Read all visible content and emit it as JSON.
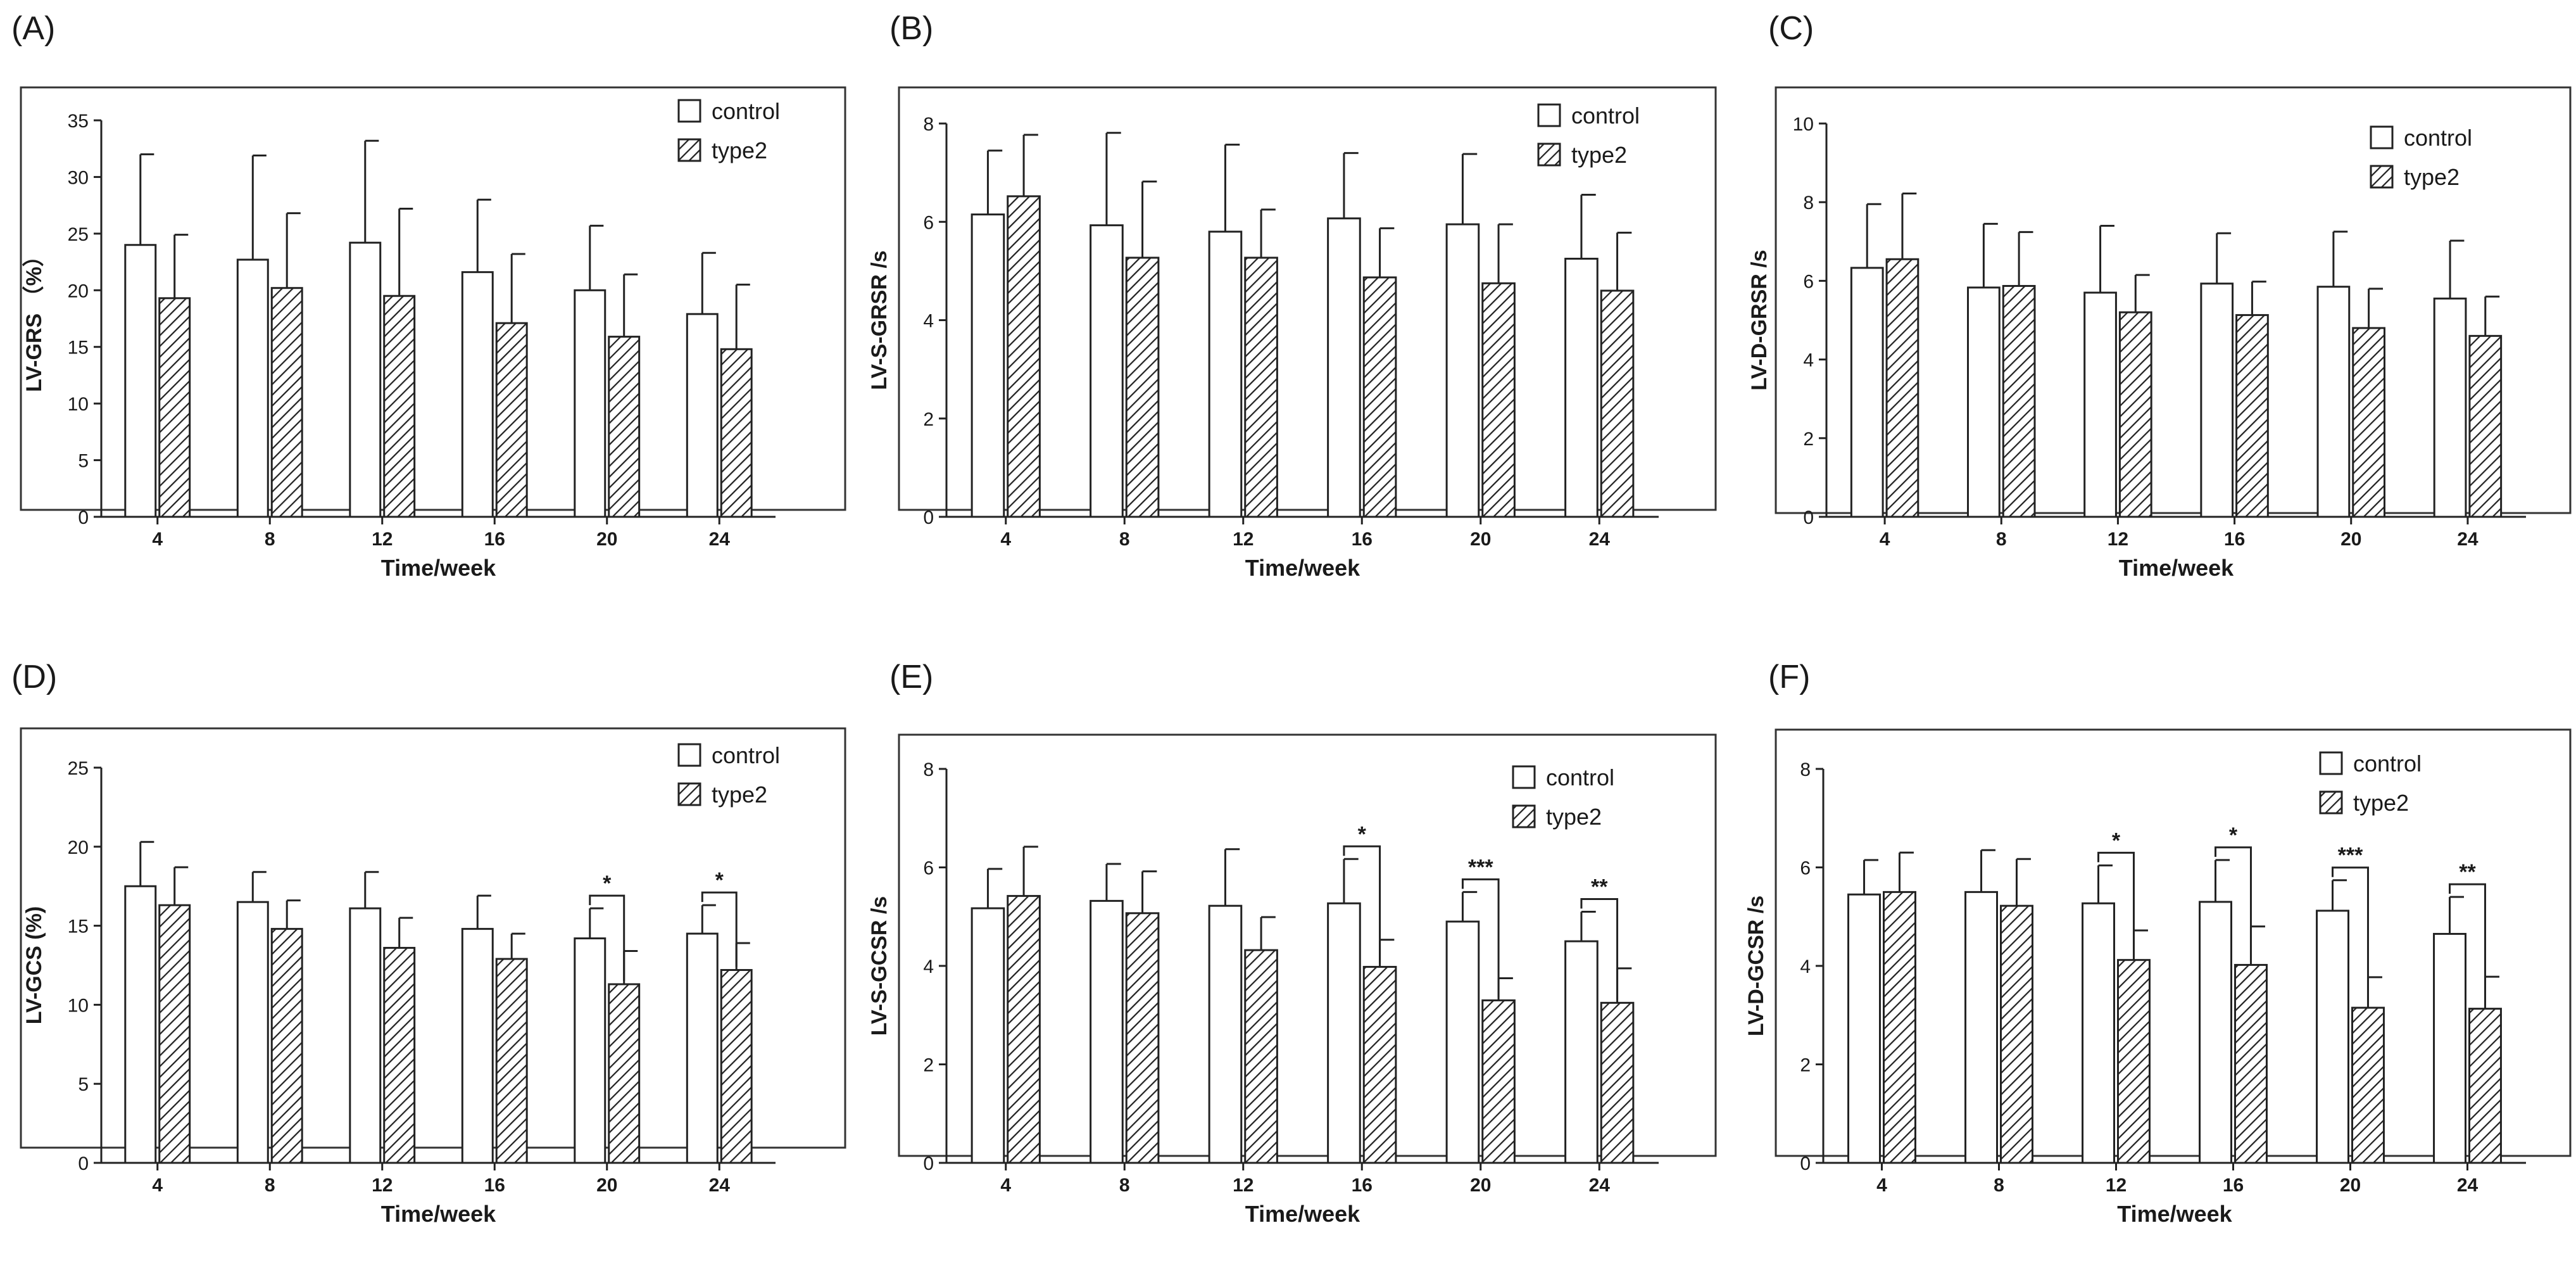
{
  "chart_data": [
    {
      "panel_label": "(A)",
      "type": "bar",
      "xlabel": "Time/week",
      "ylabel": "LV-GRS （%）",
      "categories": [
        "4",
        "8",
        "12",
        "16",
        "20",
        "24"
      ],
      "ylim": [
        0,
        35
      ],
      "yticks": [
        0,
        5,
        10,
        15,
        20,
        25,
        30,
        35
      ],
      "series": [
        {
          "name": "control",
          "values": [
            24.0,
            22.7,
            24.2,
            21.6,
            20.0,
            17.9
          ],
          "error": [
            8.0,
            9.2,
            9.0,
            6.4,
            5.7,
            5.4
          ]
        },
        {
          "name": "type2",
          "values": [
            19.3,
            20.2,
            19.5,
            17.1,
            15.9,
            14.8
          ],
          "error": [
            5.6,
            6.6,
            7.7,
            6.1,
            5.5,
            5.7
          ]
        }
      ],
      "significance": [],
      "legend_position": "top-right"
    },
    {
      "panel_label": "(B)",
      "type": "bar",
      "xlabel": "Time/week",
      "ylabel": "LV-S-GRSR /s",
      "categories": [
        "4",
        "8",
        "12",
        "16",
        "20",
        "24"
      ],
      "ylim": [
        0,
        8
      ],
      "yticks": [
        0,
        2,
        4,
        6,
        8
      ],
      "series": [
        {
          "name": "control",
          "values": [
            6.15,
            5.93,
            5.8,
            6.07,
            5.95,
            5.25
          ],
          "error": [
            1.3,
            1.88,
            1.77,
            1.33,
            1.43,
            1.3
          ]
        },
        {
          "name": "type2",
          "values": [
            6.52,
            5.27,
            5.27,
            4.87,
            4.75,
            4.6
          ],
          "error": [
            1.25,
            1.55,
            0.98,
            1.0,
            1.2,
            1.18
          ]
        }
      ],
      "significance": [],
      "legend_position": "top-right"
    },
    {
      "panel_label": "(C)",
      "type": "bar",
      "xlabel": "Time/week",
      "ylabel": "LV-D-GRSR /s",
      "categories": [
        "4",
        "8",
        "12",
        "16",
        "20",
        "24"
      ],
      "ylim": [
        0,
        10
      ],
      "yticks": [
        0,
        2,
        4,
        6,
        8,
        10
      ],
      "series": [
        {
          "name": "control",
          "values": [
            6.33,
            5.83,
            5.7,
            5.93,
            5.85,
            5.55
          ],
          "error": [
            1.62,
            1.62,
            1.7,
            1.28,
            1.4,
            1.47
          ]
        },
        {
          "name": "type2",
          "values": [
            6.55,
            5.87,
            5.2,
            5.13,
            4.8,
            4.6
          ],
          "error": [
            1.67,
            1.37,
            0.95,
            0.85,
            1.0,
            1.0
          ]
        }
      ],
      "significance": [],
      "legend_position": "top-right"
    },
    {
      "panel_label": "(D)",
      "type": "bar",
      "xlabel": "Time/week",
      "ylabel": "LV-GCS (%)",
      "categories": [
        "4",
        "8",
        "12",
        "16",
        "20",
        "24"
      ],
      "ylim": [
        0,
        25
      ],
      "yticks": [
        0,
        5,
        10,
        15,
        20,
        25
      ],
      "series": [
        {
          "name": "control",
          "values": [
            17.5,
            16.5,
            16.1,
            14.8,
            14.2,
            14.5
          ],
          "error": [
            2.8,
            1.9,
            2.3,
            2.1,
            1.9,
            1.8
          ]
        },
        {
          "name": "type2",
          "values": [
            16.3,
            14.8,
            13.6,
            12.9,
            11.3,
            12.2
          ],
          "error": [
            2.4,
            1.8,
            1.9,
            1.6,
            2.1,
            1.7
          ]
        }
      ],
      "significance": [
        {
          "index": 4,
          "label": "*"
        },
        {
          "index": 5,
          "label": "*"
        }
      ],
      "legend_position": "top-right"
    },
    {
      "panel_label": "(E)",
      "type": "bar",
      "xlabel": "Time/week",
      "ylabel": "LV-S-GCSR /s",
      "categories": [
        "4",
        "8",
        "12",
        "16",
        "20",
        "24"
      ],
      "ylim": [
        0,
        8
      ],
      "yticks": [
        0,
        2,
        4,
        6,
        8
      ],
      "series": [
        {
          "name": "control",
          "values": [
            5.17,
            5.32,
            5.22,
            5.27,
            4.9,
            4.5
          ],
          "error": [
            0.8,
            0.75,
            1.15,
            0.9,
            0.6,
            0.6
          ]
        },
        {
          "name": "type2",
          "values": [
            5.42,
            5.07,
            4.32,
            3.98,
            3.3,
            3.25
          ],
          "error": [
            1.0,
            0.85,
            0.67,
            0.55,
            0.45,
            0.7
          ]
        }
      ],
      "significance": [
        {
          "index": 3,
          "label": "*"
        },
        {
          "index": 4,
          "label": "***"
        },
        {
          "index": 5,
          "label": "**"
        }
      ],
      "legend_position": "top-right"
    },
    {
      "panel_label": "(F)",
      "type": "bar",
      "xlabel": "Time/week",
      "ylabel": "LV-D-GCSR /s",
      "categories": [
        "4",
        "8",
        "12",
        "16",
        "20",
        "24"
      ],
      "ylim": [
        0,
        8
      ],
      "yticks": [
        0,
        2,
        4,
        6,
        8
      ],
      "series": [
        {
          "name": "control",
          "values": [
            5.45,
            5.5,
            5.27,
            5.3,
            5.12,
            4.65
          ],
          "error": [
            0.7,
            0.85,
            0.77,
            0.85,
            0.62,
            0.75
          ]
        },
        {
          "name": "type2",
          "values": [
            5.5,
            5.22,
            4.12,
            4.02,
            3.15,
            3.13
          ],
          "error": [
            0.8,
            0.95,
            0.6,
            0.78,
            0.62,
            0.65
          ]
        }
      ],
      "significance": [
        {
          "index": 2,
          "label": "*"
        },
        {
          "index": 3,
          "label": "*"
        },
        {
          "index": 4,
          "label": "***"
        },
        {
          "index": 5,
          "label": "**"
        }
      ],
      "legend_position": "top-right"
    }
  ]
}
